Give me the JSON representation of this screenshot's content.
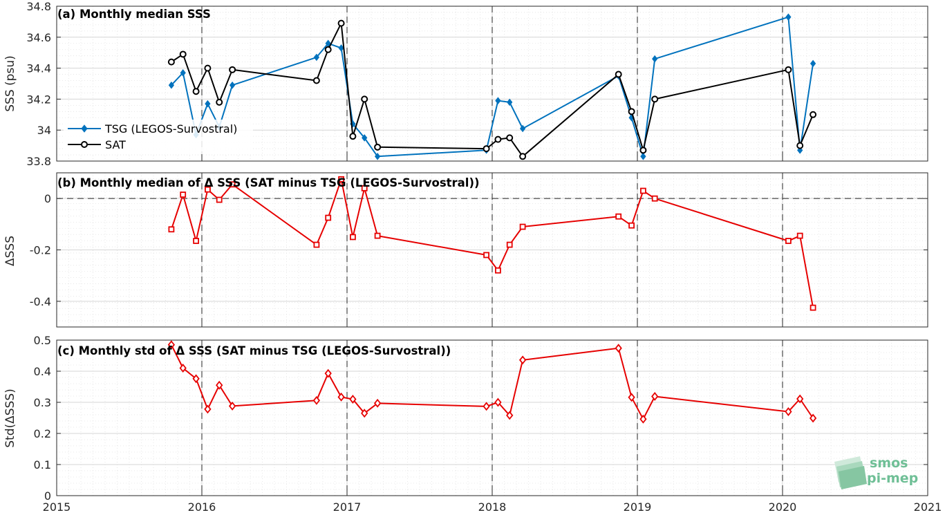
{
  "logo": {
    "line1": "smos",
    "line2": "pi-mep",
    "color": "#7cc7a0"
  },
  "xaxis": {
    "ticks": [
      "2015",
      "2016",
      "2017",
      "2018",
      "2019",
      "2020",
      "2021"
    ],
    "range": [
      2015,
      2021
    ]
  },
  "chart_data": [
    {
      "type": "line",
      "title": "(a) Monthly median SSS",
      "ylabel": "SSS (psu)",
      "ylim": [
        33.8,
        34.8
      ],
      "yticks": [
        33.8,
        34,
        34.2,
        34.4,
        34.6,
        34.8
      ],
      "ytick_labels": [
        "33.8",
        "34",
        "34.2",
        "34.4",
        "34.6",
        "34.8"
      ],
      "grid": true,
      "legend_placement": "lower-left",
      "series": [
        {
          "name": "TSG (LEGOS-Survostral)",
          "color": "#0072BD",
          "marker": "diamond-filled",
          "x": [
            2015.79,
            2015.87,
            2015.96,
            2016.04,
            2016.12,
            2016.21,
            2016.79,
            2016.87,
            2016.96,
            2017.04,
            2017.12,
            2017.21,
            2017.96,
            2018.04,
            2018.12,
            2018.21,
            2018.87,
            2018.96,
            2019.04,
            2019.12,
            2020.04,
            2020.12,
            2020.21
          ],
          "y": [
            34.29,
            34.37,
            33.97,
            34.17,
            34.02,
            34.29,
            34.47,
            34.56,
            34.53,
            34.04,
            33.95,
            33.83,
            33.87,
            34.19,
            34.18,
            34.01,
            34.35,
            34.08,
            33.83,
            34.46,
            34.73,
            33.87,
            34.43
          ]
        },
        {
          "name": "SAT",
          "color": "#000000",
          "marker": "circle-open",
          "x": [
            2015.79,
            2015.87,
            2015.96,
            2016.04,
            2016.12,
            2016.21,
            2016.79,
            2016.87,
            2016.96,
            2017.04,
            2017.12,
            2017.21,
            2017.96,
            2018.04,
            2018.12,
            2018.21,
            2018.87,
            2018.96,
            2019.04,
            2019.12,
            2020.04,
            2020.12,
            2020.21
          ],
          "y": [
            34.44,
            34.49,
            34.25,
            34.4,
            34.18,
            34.39,
            34.32,
            34.52,
            34.69,
            33.96,
            34.2,
            33.89,
            33.88,
            33.94,
            33.95,
            33.83,
            34.36,
            34.12,
            33.87,
            34.2,
            34.39,
            33.9,
            34.1
          ]
        }
      ]
    },
    {
      "type": "line",
      "title": "(b) Monthly median of Δ SSS (SAT minus TSG (LEGOS-Survostral))",
      "ylabel": "ΔSSS",
      "ylim": [
        -0.5,
        0.1
      ],
      "yticks": [
        -0.4,
        -0.2,
        0
      ],
      "ytick_labels": [
        "-0.4",
        "-0.2",
        "0"
      ],
      "grid": true,
      "zero_line": true,
      "series": [
        {
          "name": "",
          "color": "#E60000",
          "marker": "square-open",
          "x": [
            2015.79,
            2015.87,
            2015.96,
            2016.04,
            2016.12,
            2016.21,
            2016.79,
            2016.87,
            2016.96,
            2017.04,
            2017.12,
            2017.21,
            2017.96,
            2018.04,
            2018.12,
            2018.21,
            2018.87,
            2018.96,
            2019.04,
            2019.12,
            2020.04,
            2020.12,
            2020.21
          ],
          "y": [
            -0.12,
            0.015,
            -0.165,
            0.035,
            -0.005,
            0.055,
            -0.18,
            -0.075,
            0.075,
            -0.15,
            0.04,
            -0.145,
            -0.22,
            -0.28,
            -0.18,
            -0.11,
            -0.07,
            -0.105,
            0.03,
            0.0,
            -0.165,
            -0.145,
            -0.425
          ]
        }
      ]
    },
    {
      "type": "line",
      "title": "(c) Monthly std of Δ SSS (SAT minus TSG (LEGOS-Survostral))",
      "ylabel": "Std(ΔSSS)",
      "ylim": [
        0,
        0.5
      ],
      "yticks": [
        0,
        0.1,
        0.2,
        0.3,
        0.4,
        0.5
      ],
      "ytick_labels": [
        "0",
        "0.1",
        "0.2",
        "0.3",
        "0.4",
        "0.5"
      ],
      "grid": true,
      "series": [
        {
          "name": "",
          "color": "#E60000",
          "marker": "diamond-open",
          "x": [
            2015.79,
            2015.87,
            2015.96,
            2016.04,
            2016.12,
            2016.21,
            2016.79,
            2016.87,
            2016.96,
            2017.04,
            2017.12,
            2017.21,
            2017.96,
            2018.04,
            2018.12,
            2018.21,
            2018.87,
            2018.96,
            2019.04,
            2019.12,
            2020.04,
            2020.12,
            2020.21
          ],
          "y": [
            0.485,
            0.41,
            0.376,
            0.278,
            0.355,
            0.288,
            0.306,
            0.393,
            0.317,
            0.31,
            0.265,
            0.297,
            0.287,
            0.3,
            0.258,
            0.436,
            0.474,
            0.316,
            0.246,
            0.319,
            0.27,
            0.311,
            0.249
          ]
        }
      ]
    }
  ]
}
